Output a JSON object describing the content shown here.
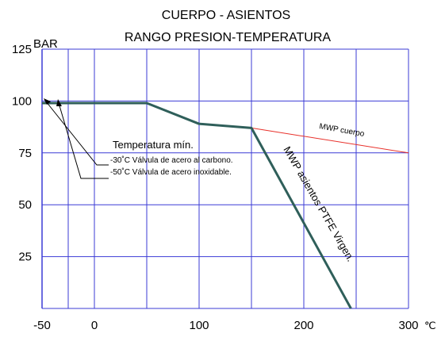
{
  "chart_data": {
    "type": "line",
    "title": "CUERPO - ASIENTOS",
    "subtitle": "RANGO PRESION-TEMPERATURA",
    "ylabel": "BAR",
    "xunit": "℃",
    "xlim": [
      -50,
      300
    ],
    "ylim": [
      0,
      125
    ],
    "x_ticks": [
      {
        "value": -50,
        "label": "-50"
      },
      {
        "value": 0,
        "label": "0"
      },
      {
        "value": 100,
        "label": "100"
      },
      {
        "value": 200,
        "label": "200"
      },
      {
        "value": 300,
        "label": "300"
      }
    ],
    "y_ticks": [
      {
        "value": 25,
        "label": "25"
      },
      {
        "value": 50,
        "label": "50"
      },
      {
        "value": 75,
        "label": "75"
      },
      {
        "value": 100,
        "label": "100"
      },
      {
        "value": 125,
        "label": "125"
      }
    ],
    "x_grid": [
      -25,
      0,
      50,
      100,
      150,
      200,
      250,
      300
    ],
    "y_grid": [
      25,
      50,
      75,
      100,
      125
    ],
    "grid": true,
    "series": [
      {
        "name": "MWP cuerpo",
        "color": "#e8302a",
        "points": [
          [
            -50,
            99
          ],
          [
            50,
            99
          ],
          [
            100,
            89
          ],
          [
            150,
            87
          ],
          [
            300,
            75
          ]
        ]
      },
      {
        "name": "MWP asientos PTFE Virgen.",
        "color": "#2f5f5a",
        "points": [
          [
            -50,
            99
          ],
          [
            50,
            99
          ],
          [
            100,
            89
          ],
          [
            150,
            87
          ],
          [
            245,
            0
          ]
        ]
      }
    ],
    "annotations": {
      "heading": "Temperatura mín.",
      "line1": "-30˚C Válvula de acero al carbono.",
      "line2": "-50˚C Válvula de acero inoxidable."
    }
  }
}
